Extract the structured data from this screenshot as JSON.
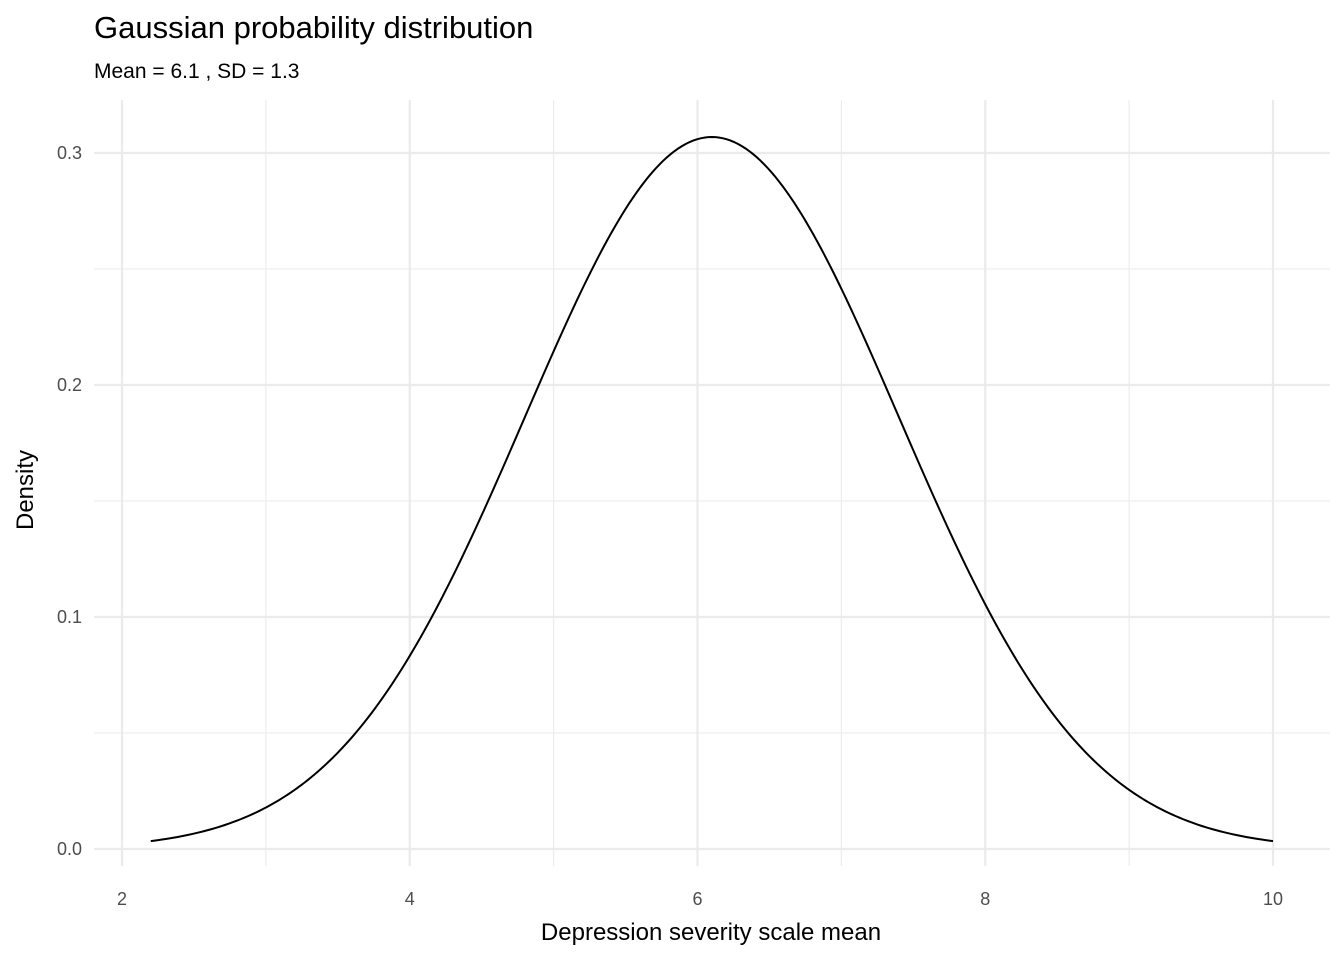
{
  "chart_data": {
    "type": "line",
    "title": "Gaussian probability distribution",
    "subtitle": "Mean = 6.1 , SD = 1.3",
    "xlabel": "Depression severity scale mean",
    "ylabel": "Density",
    "mean": 6.1,
    "sd": 1.3,
    "x_domain": [
      2.2,
      10
    ],
    "xlim": [
      1.81,
      10.39
    ],
    "ylim": [
      -0.012,
      0.322
    ],
    "x_ticks": [
      2,
      4,
      6,
      8,
      10
    ],
    "x_tick_labels": [
      "2",
      "4",
      "6",
      "8",
      "10"
    ],
    "y_ticks": [
      0.0,
      0.1,
      0.2,
      0.3
    ],
    "y_tick_labels": [
      "0.0",
      "0.1",
      "0.2",
      "0.3"
    ],
    "grid": true,
    "line_color": "#000000",
    "grid_color": "#ebebeb"
  }
}
